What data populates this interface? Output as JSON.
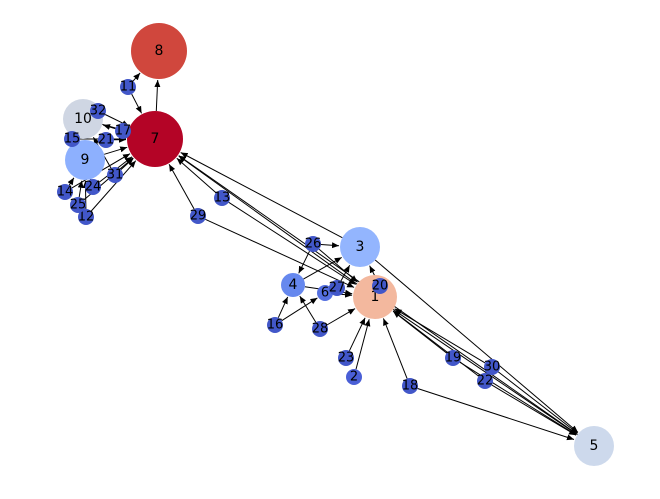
{
  "chart_data": {
    "type": "network",
    "directed": true,
    "colormap": "coolwarm",
    "nodes": [
      {
        "id": "1",
        "color": "#f3b89e",
        "size": "large"
      },
      {
        "id": "2",
        "color": "#4a5fd6",
        "size": "small"
      },
      {
        "id": "3",
        "color": "#93b5fe",
        "size": "medium"
      },
      {
        "id": "4",
        "color": "#6688ee",
        "size": "medium-small"
      },
      {
        "id": "5",
        "color": "#cdd9ec",
        "size": "medium"
      },
      {
        "id": "6",
        "color": "#5570e0",
        "size": "small"
      },
      {
        "id": "7",
        "color": "#b40426",
        "size": "xlarge"
      },
      {
        "id": "8",
        "color": "#d0473d",
        "size": "xlarge"
      },
      {
        "id": "9",
        "color": "#8db0fe",
        "size": "medium"
      },
      {
        "id": "10",
        "color": "#cfd6e3",
        "size": "medium"
      },
      {
        "id": "11",
        "color": "#4257c9",
        "size": "small"
      },
      {
        "id": "12",
        "color": "#4257c9",
        "size": "small"
      },
      {
        "id": "13",
        "color": "#4257c9",
        "size": "small"
      },
      {
        "id": "14",
        "color": "#4257c9",
        "size": "small"
      },
      {
        "id": "15",
        "color": "#4257c9",
        "size": "small"
      },
      {
        "id": "16",
        "color": "#4257c9",
        "size": "small"
      },
      {
        "id": "17",
        "color": "#4257c9",
        "size": "small"
      },
      {
        "id": "18",
        "color": "#4257c9",
        "size": "small"
      },
      {
        "id": "19",
        "color": "#4257c9",
        "size": "small"
      },
      {
        "id": "20",
        "color": "#4257c9",
        "size": "small"
      },
      {
        "id": "21",
        "color": "#4257c9",
        "size": "small"
      },
      {
        "id": "22",
        "color": "#4257c9",
        "size": "small"
      },
      {
        "id": "23",
        "color": "#4257c9",
        "size": "small"
      },
      {
        "id": "24",
        "color": "#4257c9",
        "size": "small"
      },
      {
        "id": "25",
        "color": "#4257c9",
        "size": "small"
      },
      {
        "id": "26",
        "color": "#4257c9",
        "size": "small"
      },
      {
        "id": "27",
        "color": "#4257c9",
        "size": "small"
      },
      {
        "id": "28",
        "color": "#4257c9",
        "size": "small"
      },
      {
        "id": "29",
        "color": "#4257c9",
        "size": "small"
      },
      {
        "id": "30",
        "color": "#4257c9",
        "size": "small"
      },
      {
        "id": "31",
        "color": "#4257c9",
        "size": "small"
      },
      {
        "id": "32",
        "color": "#4257c9",
        "size": "small"
      }
    ],
    "edges": [
      [
        "7",
        "8"
      ],
      [
        "11",
        "8"
      ],
      [
        "11",
        "7"
      ],
      [
        "32",
        "10"
      ],
      [
        "32",
        "7"
      ],
      [
        "15",
        "7"
      ],
      [
        "21",
        "7"
      ],
      [
        "17",
        "10"
      ],
      [
        "17",
        "7"
      ],
      [
        "10",
        "7"
      ],
      [
        "9",
        "7"
      ],
      [
        "14",
        "9"
      ],
      [
        "14",
        "7"
      ],
      [
        "24",
        "9"
      ],
      [
        "24",
        "7"
      ],
      [
        "25",
        "9"
      ],
      [
        "25",
        "7"
      ],
      [
        "12",
        "9"
      ],
      [
        "12",
        "7"
      ],
      [
        "31",
        "10"
      ],
      [
        "31",
        "7"
      ],
      [
        "13",
        "7"
      ],
      [
        "13",
        "1"
      ],
      [
        "29",
        "7"
      ],
      [
        "29",
        "1"
      ],
      [
        "1",
        "7"
      ],
      [
        "3",
        "7"
      ],
      [
        "5",
        "7"
      ],
      [
        "26",
        "3"
      ],
      [
        "26",
        "4"
      ],
      [
        "26",
        "1"
      ],
      [
        "4",
        "3"
      ],
      [
        "4",
        "1"
      ],
      [
        "16",
        "4"
      ],
      [
        "16",
        "6"
      ],
      [
        "6",
        "1"
      ],
      [
        "27",
        "3"
      ],
      [
        "28",
        "4"
      ],
      [
        "28",
        "1"
      ],
      [
        "23",
        "1"
      ],
      [
        "2",
        "1"
      ],
      [
        "20",
        "3"
      ],
      [
        "18",
        "1"
      ],
      [
        "18",
        "5"
      ],
      [
        "19",
        "1"
      ],
      [
        "19",
        "5"
      ],
      [
        "30",
        "1"
      ],
      [
        "30",
        "5"
      ],
      [
        "22",
        "1"
      ],
      [
        "22",
        "5"
      ],
      [
        "3",
        "5"
      ],
      [
        "1",
        "5"
      ]
    ]
  }
}
